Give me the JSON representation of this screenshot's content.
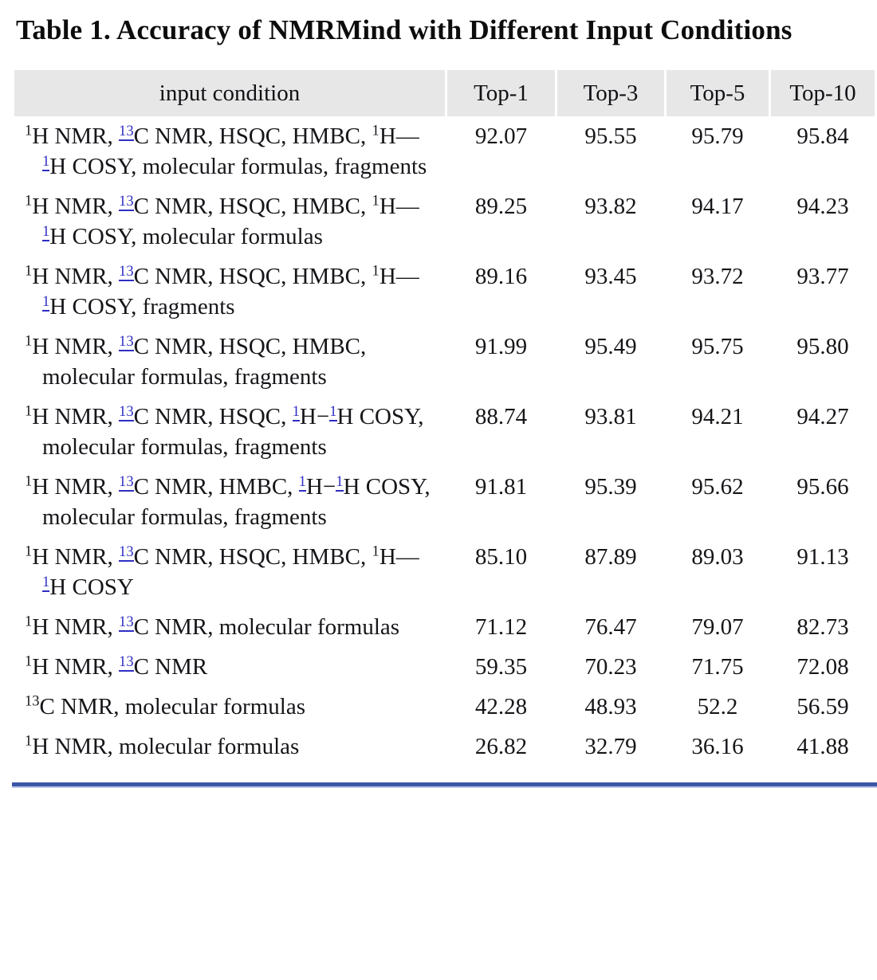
{
  "title": "Table 1. Accuracy of NMRMind with Different Input Conditions",
  "colors": {
    "header_bg": "#e7e7e7",
    "text": "#16161a",
    "link_blue": "#2e2ec4",
    "rule_dark": "#3a56a7",
    "rule_light": "#bcc8e8"
  },
  "table": {
    "columns": [
      "input condition",
      "Top-1",
      "Top-3",
      "Top-5",
      "Top-10"
    ],
    "rows": [
      {
        "condition": [
          {
            "t": "1",
            "s": "sup"
          },
          {
            "t": "H NMR, "
          },
          {
            "t": "13",
            "s": "suplink"
          },
          {
            "t": "C NMR, HSQC, HMBC, "
          },
          {
            "t": "1",
            "s": "sup"
          },
          {
            "t": "H—"
          },
          {
            "t": "1",
            "s": "suplink"
          },
          {
            "t": "H COSY, molecular formulas, fragments"
          }
        ],
        "values": [
          "92.07",
          "95.55",
          "95.79",
          "95.84"
        ]
      },
      {
        "condition": [
          {
            "t": "1",
            "s": "sup"
          },
          {
            "t": "H NMR, "
          },
          {
            "t": "13",
            "s": "suplink"
          },
          {
            "t": "C NMR, HSQC, HMBC, "
          },
          {
            "t": "1",
            "s": "sup"
          },
          {
            "t": "H—"
          },
          {
            "t": "1",
            "s": "suplink"
          },
          {
            "t": "H COSY, molecular formulas"
          }
        ],
        "values": [
          "89.25",
          "93.82",
          "94.17",
          "94.23"
        ]
      },
      {
        "condition": [
          {
            "t": "1",
            "s": "sup"
          },
          {
            "t": "H NMR, "
          },
          {
            "t": "13",
            "s": "suplink"
          },
          {
            "t": "C NMR, HSQC, HMBC, "
          },
          {
            "t": "1",
            "s": "sup"
          },
          {
            "t": "H—"
          },
          {
            "t": "1",
            "s": "suplink"
          },
          {
            "t": "H COSY, fragments"
          }
        ],
        "values": [
          "89.16",
          "93.45",
          "93.72",
          "93.77"
        ]
      },
      {
        "condition": [
          {
            "t": "1",
            "s": "sup"
          },
          {
            "t": "H NMR, "
          },
          {
            "t": "13",
            "s": "suplink"
          },
          {
            "t": "C NMR, HSQC, HMBC, molecular formulas, fragments"
          }
        ],
        "values": [
          "91.99",
          "95.49",
          "95.75",
          "95.80"
        ]
      },
      {
        "condition": [
          {
            "t": "1",
            "s": "sup"
          },
          {
            "t": "H NMR, "
          },
          {
            "t": "13",
            "s": "suplink"
          },
          {
            "t": "C NMR, HSQC, "
          },
          {
            "t": "1",
            "s": "suplink"
          },
          {
            "t": "H−"
          },
          {
            "t": "1",
            "s": "suplink"
          },
          {
            "t": "H COSY, molecular formulas, fragments"
          }
        ],
        "values": [
          "88.74",
          "93.81",
          "94.21",
          "94.27"
        ]
      },
      {
        "condition": [
          {
            "t": "1",
            "s": "sup"
          },
          {
            "t": "H NMR, "
          },
          {
            "t": "13",
            "s": "suplink"
          },
          {
            "t": "C NMR, HMBC, "
          },
          {
            "t": "1",
            "s": "suplink"
          },
          {
            "t": "H−"
          },
          {
            "t": "1",
            "s": "suplink"
          },
          {
            "t": "H COSY, molecular formulas, fragments"
          }
        ],
        "values": [
          "91.81",
          "95.39",
          "95.62",
          "95.66"
        ]
      },
      {
        "condition": [
          {
            "t": "1",
            "s": "sup"
          },
          {
            "t": "H NMR, "
          },
          {
            "t": "13",
            "s": "suplink"
          },
          {
            "t": "C NMR, HSQC, HMBC, "
          },
          {
            "t": "1",
            "s": "sup"
          },
          {
            "t": "H—"
          },
          {
            "t": "1",
            "s": "suplink"
          },
          {
            "t": "H COSY"
          }
        ],
        "values": [
          "85.10",
          "87.89",
          "89.03",
          "91.13"
        ]
      },
      {
        "condition": [
          {
            "t": "1",
            "s": "sup"
          },
          {
            "t": "H NMR, "
          },
          {
            "t": "13",
            "s": "suplink"
          },
          {
            "t": "C NMR, molecular formulas"
          }
        ],
        "values": [
          "71.12",
          "76.47",
          "79.07",
          "82.73"
        ]
      },
      {
        "condition": [
          {
            "t": "1",
            "s": "sup"
          },
          {
            "t": "H NMR, "
          },
          {
            "t": "13",
            "s": "suplink"
          },
          {
            "t": "C NMR"
          }
        ],
        "values": [
          "59.35",
          "70.23",
          "71.75",
          "72.08"
        ]
      },
      {
        "condition": [
          {
            "t": "13",
            "s": "sup"
          },
          {
            "t": "C NMR, molecular formulas"
          }
        ],
        "values": [
          "42.28",
          "48.93",
          "52.2",
          "56.59"
        ]
      },
      {
        "condition": [
          {
            "t": "1",
            "s": "sup"
          },
          {
            "t": "H NMR, molecular formulas"
          }
        ],
        "values": [
          "26.82",
          "32.79",
          "36.16",
          "41.88"
        ]
      }
    ]
  }
}
